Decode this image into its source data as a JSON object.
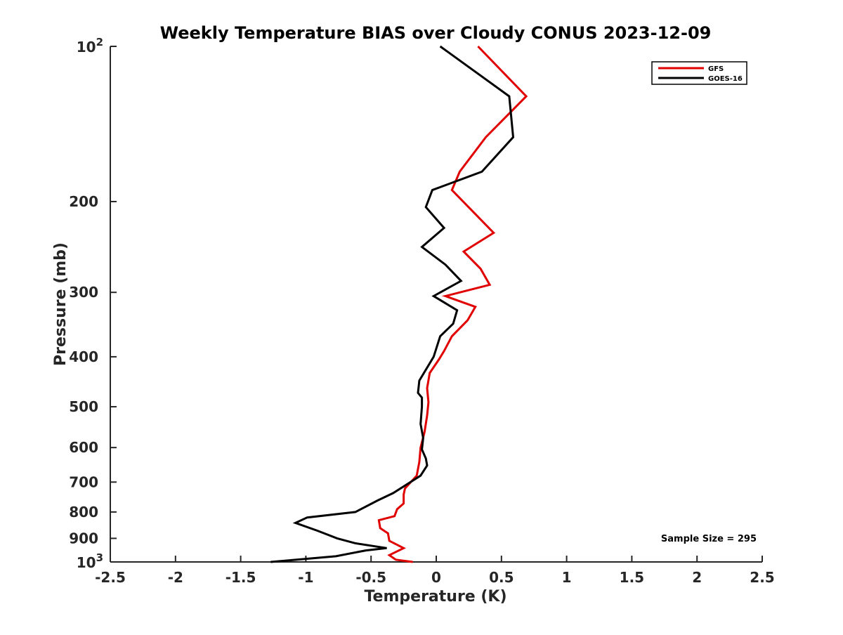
{
  "chart_data": {
    "type": "line",
    "title": "Weekly Temperature BIAS over Cloudy CONUS 2023-12-09",
    "xlabel": "Temperature (K)",
    "ylabel": "Pressure (mb)",
    "xlim": [
      -2.5,
      2.5
    ],
    "ylim": [
      1000,
      100
    ],
    "y_scale": "log",
    "grid": false,
    "legend_position": "top-right",
    "x_ticks": [
      {
        "value": -2.5,
        "label": "-2.5"
      },
      {
        "value": -2,
        "label": "-2"
      },
      {
        "value": -1.5,
        "label": "-1.5"
      },
      {
        "value": -1,
        "label": "-1"
      },
      {
        "value": -0.5,
        "label": "-0.5"
      },
      {
        "value": 0,
        "label": "0"
      },
      {
        "value": 0.5,
        "label": "0.5"
      },
      {
        "value": 1,
        "label": "1"
      },
      {
        "value": 1.5,
        "label": "1.5"
      },
      {
        "value": 2,
        "label": "2"
      },
      {
        "value": 2.5,
        "label": "2.5"
      }
    ],
    "y_ticks": [
      {
        "value": 100,
        "label": "",
        "base": "10",
        "exp": "2"
      },
      {
        "value": 200,
        "label": "200"
      },
      {
        "value": 300,
        "label": "300"
      },
      {
        "value": 400,
        "label": "400"
      },
      {
        "value": 500,
        "label": "500"
      },
      {
        "value": 600,
        "label": "600"
      },
      {
        "value": 700,
        "label": "700"
      },
      {
        "value": 800,
        "label": "800"
      },
      {
        "value": 900,
        "label": "900"
      },
      {
        "value": 1000,
        "label": "",
        "base": "10",
        "exp": "3"
      }
    ],
    "annotation": "Sample Size = 295",
    "series": [
      {
        "name": "GFS",
        "color": "#e00000",
        "points": [
          [
            0.32,
            100
          ],
          [
            0.69,
            125
          ],
          [
            0.38,
            150
          ],
          [
            0.18,
            175
          ],
          [
            0.12,
            190
          ],
          [
            0.44,
            230
          ],
          [
            0.21,
            250
          ],
          [
            0.34,
            270
          ],
          [
            0.41,
            290
          ],
          [
            0.07,
            305
          ],
          [
            0.3,
            320
          ],
          [
            0.24,
            340
          ],
          [
            0.12,
            365
          ],
          [
            0.06,
            390
          ],
          [
            0.02,
            405
          ],
          [
            -0.05,
            430
          ],
          [
            -0.07,
            460
          ],
          [
            -0.06,
            490
          ],
          [
            -0.07,
            520
          ],
          [
            -0.09,
            560
          ],
          [
            -0.12,
            600
          ],
          [
            -0.13,
            640
          ],
          [
            -0.15,
            680
          ],
          [
            -0.24,
            720
          ],
          [
            -0.25,
            740
          ],
          [
            -0.25,
            770
          ],
          [
            -0.3,
            790
          ],
          [
            -0.32,
            815
          ],
          [
            -0.44,
            830
          ],
          [
            -0.43,
            860
          ],
          [
            -0.37,
            880
          ],
          [
            -0.36,
            910
          ],
          [
            -0.25,
            940
          ],
          [
            -0.36,
            970
          ],
          [
            -0.31,
            990
          ],
          [
            -0.18,
            1000
          ]
        ]
      },
      {
        "name": "GOES-16",
        "color": "#000000",
        "points": [
          [
            0.03,
            100
          ],
          [
            0.56,
            125
          ],
          [
            0.59,
            150
          ],
          [
            0.35,
            175
          ],
          [
            -0.03,
            190
          ],
          [
            -0.08,
            205
          ],
          [
            0.06,
            225
          ],
          [
            -0.11,
            245
          ],
          [
            0.07,
            265
          ],
          [
            0.19,
            285
          ],
          [
            -0.02,
            305
          ],
          [
            0.16,
            325
          ],
          [
            0.13,
            345
          ],
          [
            0.03,
            365
          ],
          [
            -0.02,
            400
          ],
          [
            -0.13,
            445
          ],
          [
            -0.14,
            470
          ],
          [
            -0.11,
            480
          ],
          [
            -0.11,
            500
          ],
          [
            -0.12,
            540
          ],
          [
            -0.1,
            575
          ],
          [
            -0.11,
            605
          ],
          [
            -0.08,
            630
          ],
          [
            -0.07,
            650
          ],
          [
            -0.12,
            680
          ],
          [
            -0.33,
            735
          ],
          [
            -0.45,
            760
          ],
          [
            -0.62,
            800
          ],
          [
            -0.99,
            820
          ],
          [
            -1.08,
            840
          ],
          [
            -0.91,
            870
          ],
          [
            -0.76,
            900
          ],
          [
            -0.62,
            920
          ],
          [
            -0.38,
            940
          ],
          [
            -0.54,
            950
          ],
          [
            -0.77,
            975
          ],
          [
            -1.27,
            1000
          ]
        ]
      }
    ]
  }
}
